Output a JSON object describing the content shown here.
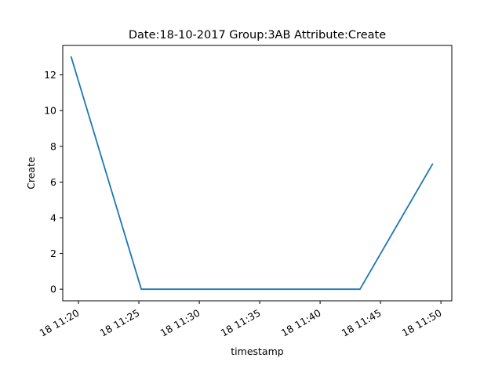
{
  "chart_data": {
    "type": "line",
    "title": "Date:18-10-2017  Group:3AB Attribute:Create",
    "xlabel": "timestamp",
    "ylabel": "Create",
    "x_unit": "minutes after 11:00 on the 18th",
    "x_ticks": [
      {
        "value": 20,
        "label": "18 11:20"
      },
      {
        "value": 25,
        "label": "18 11:25"
      },
      {
        "value": 30,
        "label": "18 11:30"
      },
      {
        "value": 35,
        "label": "18 11:35"
      },
      {
        "value": 40,
        "label": "18 11:40"
      },
      {
        "value": 45,
        "label": "18 11:45"
      },
      {
        "value": 50,
        "label": "18 11:50"
      }
    ],
    "y_ticks": [
      0,
      2,
      4,
      6,
      8,
      10,
      12
    ],
    "xlim": [
      18.7,
      50.9
    ],
    "ylim": [
      -0.65,
      13.65
    ],
    "series": [
      {
        "color": "#1f77b4",
        "x": [
          19.4,
          25.2,
          43.3,
          49.3
        ],
        "y": [
          13,
          0,
          0,
          7
        ]
      }
    ],
    "grid": false
  }
}
